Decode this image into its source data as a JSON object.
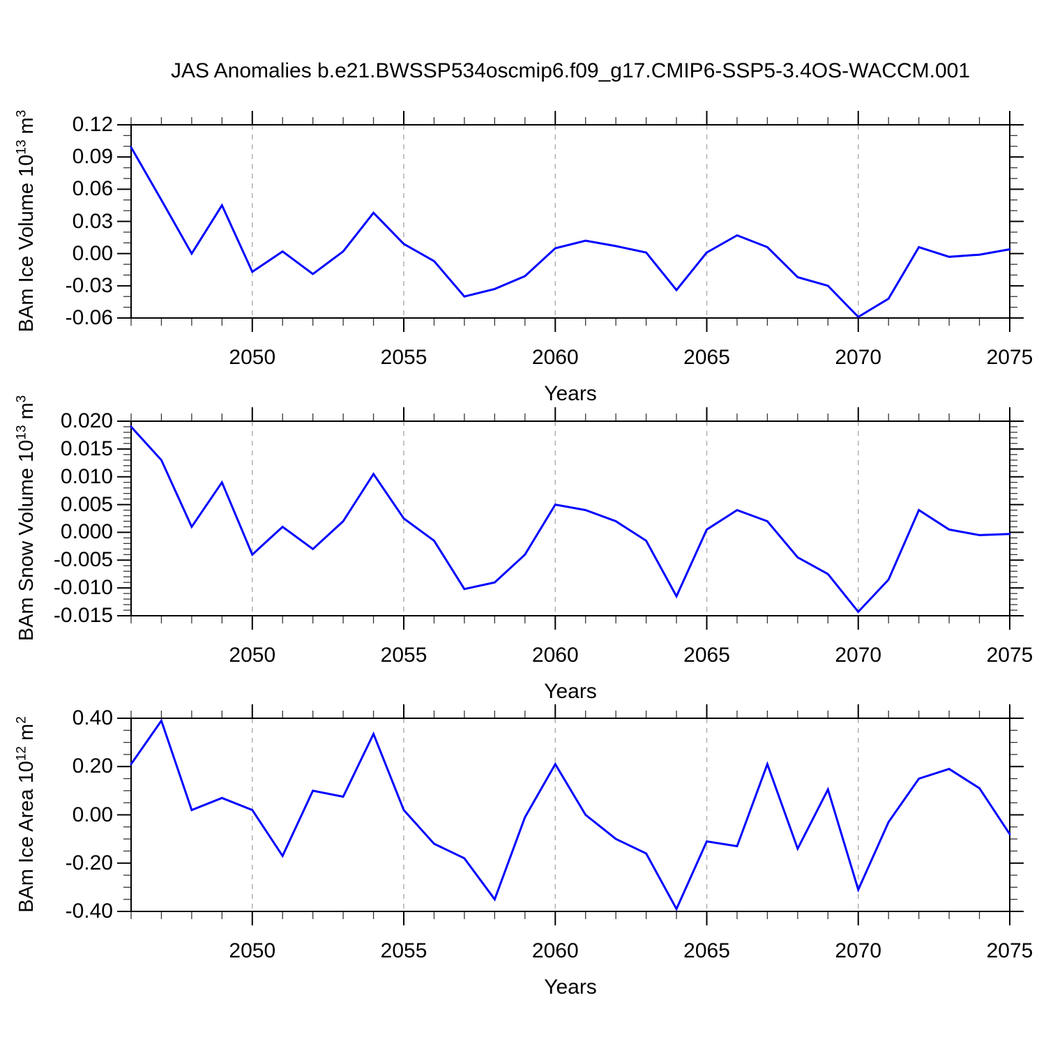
{
  "chart_data": {
    "type": "line",
    "title": "JAS Anomalies b.e21.BWSSP534oscmip6.f09_g17.CMIP6-SSP5-3.4OS-WACCM.001",
    "xlabel": "Years",
    "x_min": 2046,
    "x_max": 2075,
    "x_tick_labels": [
      "2050",
      "2055",
      "2060",
      "2065",
      "2070",
      "2075"
    ],
    "grid_years": [
      2050,
      2055,
      2060,
      2065,
      2070
    ],
    "line_color": "#0000ff",
    "grid_color": "#b0b0b0",
    "years": [
      2046,
      2047,
      2048,
      2049,
      2050,
      2051,
      2052,
      2053,
      2054,
      2055,
      2056,
      2057,
      2058,
      2059,
      2060,
      2061,
      2062,
      2063,
      2064,
      2065,
      2066,
      2067,
      2068,
      2069,
      2070,
      2071,
      2072,
      2073,
      2074,
      2075
    ],
    "panels": [
      {
        "ylabel_pre": "BAm Ice Volume 10",
        "ylabel_exp1": "13",
        "ylabel_mid": " m",
        "ylabel_exp2": "3",
        "ymin": -0.06,
        "ymax": 0.12,
        "ytick_labels": [
          "0.12",
          "0.09",
          "0.06",
          "0.03",
          "0.00",
          "-0.03",
          "-0.06"
        ],
        "yminor_step": 0.01,
        "values": [
          0.099,
          0.05,
          0.0,
          0.045,
          -0.017,
          0.002,
          -0.019,
          0.002,
          0.038,
          0.009,
          -0.007,
          -0.04,
          -0.033,
          -0.021,
          0.005,
          0.012,
          0.007,
          0.001,
          -0.034,
          0.001,
          0.017,
          0.006,
          -0.022,
          -0.03,
          -0.059,
          -0.042,
          0.006,
          -0.003,
          -0.001,
          0.004
        ]
      },
      {
        "ylabel_pre": "BAm Snow Volume 10",
        "ylabel_exp1": "13",
        "ylabel_mid": " m",
        "ylabel_exp2": "3",
        "ymin": -0.015,
        "ymax": 0.02,
        "ytick_labels": [
          "0.020",
          "0.015",
          "0.010",
          "0.005",
          "0.000",
          "-0.005",
          "-0.010",
          "-0.015"
        ],
        "yminor_step": 0.001,
        "values": [
          0.019,
          0.013,
          0.001,
          0.009,
          -0.004,
          0.001,
          -0.003,
          0.002,
          0.0105,
          0.0025,
          -0.0015,
          -0.0102,
          -0.009,
          -0.004,
          0.005,
          0.004,
          0.002,
          -0.0015,
          -0.0115,
          0.0005,
          0.004,
          0.002,
          -0.0045,
          -0.0075,
          -0.0143,
          -0.0085,
          0.004,
          0.0005,
          -0.0005,
          -0.0003
        ]
      },
      {
        "ylabel_pre": "BAm Ice Area 10",
        "ylabel_exp1": "12",
        "ylabel_mid": " m",
        "ylabel_exp2": "2",
        "ymin": -0.4,
        "ymax": 0.4,
        "ytick_labels": [
          "0.40",
          "0.20",
          "0.00",
          "-0.20",
          "-0.40"
        ],
        "yminor_step": 0.05,
        "values": [
          0.21,
          0.39,
          0.02,
          0.07,
          0.02,
          -0.17,
          0.1,
          0.075,
          0.335,
          0.02,
          -0.12,
          -0.18,
          -0.35,
          -0.01,
          0.21,
          0.0,
          -0.1,
          -0.16,
          -0.39,
          -0.11,
          -0.13,
          0.21,
          -0.14,
          0.105,
          -0.31,
          -0.03,
          0.15,
          0.19,
          0.11,
          -0.08
        ]
      }
    ]
  }
}
